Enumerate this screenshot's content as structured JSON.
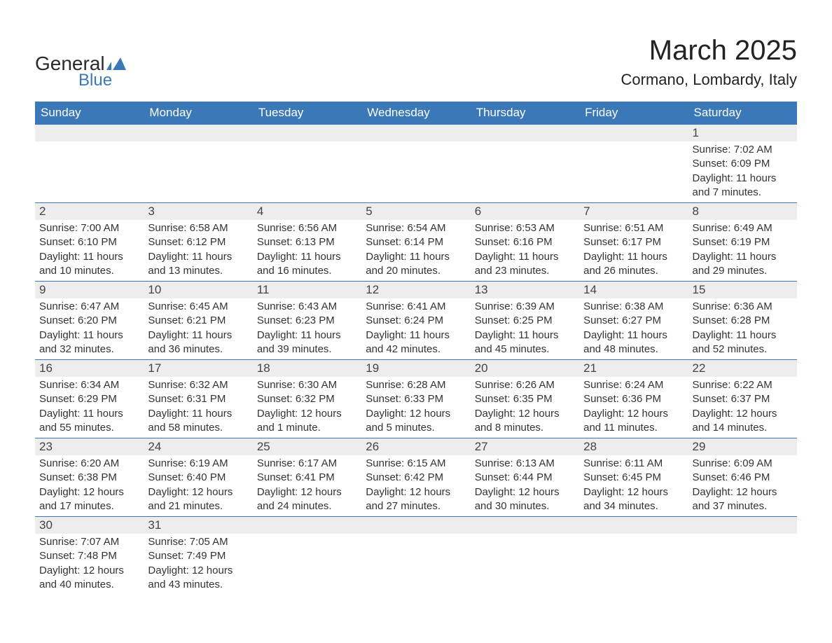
{
  "logo": {
    "general": "General",
    "blue": "Blue"
  },
  "title": "March 2025",
  "location": "Cormano, Lombardy, Italy",
  "colors": {
    "header_bg": "#3a78b8",
    "header_text": "#ffffff",
    "daynum_bg": "#ededed",
    "border": "#3a78b8",
    "text": "#333333",
    "logo_blue": "#3a78b8",
    "background": "#ffffff"
  },
  "typography": {
    "title_fontsize": 40,
    "location_fontsize": 22,
    "header_fontsize": 17,
    "daynum_fontsize": 17,
    "body_fontsize": 15
  },
  "layout": {
    "columns": 7,
    "rows": 6,
    "cell_width_pct": 14.28
  },
  "days_of_week": [
    "Sunday",
    "Monday",
    "Tuesday",
    "Wednesday",
    "Thursday",
    "Friday",
    "Saturday"
  ],
  "weeks": [
    [
      null,
      null,
      null,
      null,
      null,
      null,
      {
        "n": "1",
        "sunrise": "Sunrise: 7:02 AM",
        "sunset": "Sunset: 6:09 PM",
        "daylight1": "Daylight: 11 hours",
        "daylight2": "and 7 minutes."
      }
    ],
    [
      {
        "n": "2",
        "sunrise": "Sunrise: 7:00 AM",
        "sunset": "Sunset: 6:10 PM",
        "daylight1": "Daylight: 11 hours",
        "daylight2": "and 10 minutes."
      },
      {
        "n": "3",
        "sunrise": "Sunrise: 6:58 AM",
        "sunset": "Sunset: 6:12 PM",
        "daylight1": "Daylight: 11 hours",
        "daylight2": "and 13 minutes."
      },
      {
        "n": "4",
        "sunrise": "Sunrise: 6:56 AM",
        "sunset": "Sunset: 6:13 PM",
        "daylight1": "Daylight: 11 hours",
        "daylight2": "and 16 minutes."
      },
      {
        "n": "5",
        "sunrise": "Sunrise: 6:54 AM",
        "sunset": "Sunset: 6:14 PM",
        "daylight1": "Daylight: 11 hours",
        "daylight2": "and 20 minutes."
      },
      {
        "n": "6",
        "sunrise": "Sunrise: 6:53 AM",
        "sunset": "Sunset: 6:16 PM",
        "daylight1": "Daylight: 11 hours",
        "daylight2": "and 23 minutes."
      },
      {
        "n": "7",
        "sunrise": "Sunrise: 6:51 AM",
        "sunset": "Sunset: 6:17 PM",
        "daylight1": "Daylight: 11 hours",
        "daylight2": "and 26 minutes."
      },
      {
        "n": "8",
        "sunrise": "Sunrise: 6:49 AM",
        "sunset": "Sunset: 6:19 PM",
        "daylight1": "Daylight: 11 hours",
        "daylight2": "and 29 minutes."
      }
    ],
    [
      {
        "n": "9",
        "sunrise": "Sunrise: 6:47 AM",
        "sunset": "Sunset: 6:20 PM",
        "daylight1": "Daylight: 11 hours",
        "daylight2": "and 32 minutes."
      },
      {
        "n": "10",
        "sunrise": "Sunrise: 6:45 AM",
        "sunset": "Sunset: 6:21 PM",
        "daylight1": "Daylight: 11 hours",
        "daylight2": "and 36 minutes."
      },
      {
        "n": "11",
        "sunrise": "Sunrise: 6:43 AM",
        "sunset": "Sunset: 6:23 PM",
        "daylight1": "Daylight: 11 hours",
        "daylight2": "and 39 minutes."
      },
      {
        "n": "12",
        "sunrise": "Sunrise: 6:41 AM",
        "sunset": "Sunset: 6:24 PM",
        "daylight1": "Daylight: 11 hours",
        "daylight2": "and 42 minutes."
      },
      {
        "n": "13",
        "sunrise": "Sunrise: 6:39 AM",
        "sunset": "Sunset: 6:25 PM",
        "daylight1": "Daylight: 11 hours",
        "daylight2": "and 45 minutes."
      },
      {
        "n": "14",
        "sunrise": "Sunrise: 6:38 AM",
        "sunset": "Sunset: 6:27 PM",
        "daylight1": "Daylight: 11 hours",
        "daylight2": "and 48 minutes."
      },
      {
        "n": "15",
        "sunrise": "Sunrise: 6:36 AM",
        "sunset": "Sunset: 6:28 PM",
        "daylight1": "Daylight: 11 hours",
        "daylight2": "and 52 minutes."
      }
    ],
    [
      {
        "n": "16",
        "sunrise": "Sunrise: 6:34 AM",
        "sunset": "Sunset: 6:29 PM",
        "daylight1": "Daylight: 11 hours",
        "daylight2": "and 55 minutes."
      },
      {
        "n": "17",
        "sunrise": "Sunrise: 6:32 AM",
        "sunset": "Sunset: 6:31 PM",
        "daylight1": "Daylight: 11 hours",
        "daylight2": "and 58 minutes."
      },
      {
        "n": "18",
        "sunrise": "Sunrise: 6:30 AM",
        "sunset": "Sunset: 6:32 PM",
        "daylight1": "Daylight: 12 hours",
        "daylight2": "and 1 minute."
      },
      {
        "n": "19",
        "sunrise": "Sunrise: 6:28 AM",
        "sunset": "Sunset: 6:33 PM",
        "daylight1": "Daylight: 12 hours",
        "daylight2": "and 5 minutes."
      },
      {
        "n": "20",
        "sunrise": "Sunrise: 6:26 AM",
        "sunset": "Sunset: 6:35 PM",
        "daylight1": "Daylight: 12 hours",
        "daylight2": "and 8 minutes."
      },
      {
        "n": "21",
        "sunrise": "Sunrise: 6:24 AM",
        "sunset": "Sunset: 6:36 PM",
        "daylight1": "Daylight: 12 hours",
        "daylight2": "and 11 minutes."
      },
      {
        "n": "22",
        "sunrise": "Sunrise: 6:22 AM",
        "sunset": "Sunset: 6:37 PM",
        "daylight1": "Daylight: 12 hours",
        "daylight2": "and 14 minutes."
      }
    ],
    [
      {
        "n": "23",
        "sunrise": "Sunrise: 6:20 AM",
        "sunset": "Sunset: 6:38 PM",
        "daylight1": "Daylight: 12 hours",
        "daylight2": "and 17 minutes."
      },
      {
        "n": "24",
        "sunrise": "Sunrise: 6:19 AM",
        "sunset": "Sunset: 6:40 PM",
        "daylight1": "Daylight: 12 hours",
        "daylight2": "and 21 minutes."
      },
      {
        "n": "25",
        "sunrise": "Sunrise: 6:17 AM",
        "sunset": "Sunset: 6:41 PM",
        "daylight1": "Daylight: 12 hours",
        "daylight2": "and 24 minutes."
      },
      {
        "n": "26",
        "sunrise": "Sunrise: 6:15 AM",
        "sunset": "Sunset: 6:42 PM",
        "daylight1": "Daylight: 12 hours",
        "daylight2": "and 27 minutes."
      },
      {
        "n": "27",
        "sunrise": "Sunrise: 6:13 AM",
        "sunset": "Sunset: 6:44 PM",
        "daylight1": "Daylight: 12 hours",
        "daylight2": "and 30 minutes."
      },
      {
        "n": "28",
        "sunrise": "Sunrise: 6:11 AM",
        "sunset": "Sunset: 6:45 PM",
        "daylight1": "Daylight: 12 hours",
        "daylight2": "and 34 minutes."
      },
      {
        "n": "29",
        "sunrise": "Sunrise: 6:09 AM",
        "sunset": "Sunset: 6:46 PM",
        "daylight1": "Daylight: 12 hours",
        "daylight2": "and 37 minutes."
      }
    ],
    [
      {
        "n": "30",
        "sunrise": "Sunrise: 7:07 AM",
        "sunset": "Sunset: 7:48 PM",
        "daylight1": "Daylight: 12 hours",
        "daylight2": "and 40 minutes."
      },
      {
        "n": "31",
        "sunrise": "Sunrise: 7:05 AM",
        "sunset": "Sunset: 7:49 PM",
        "daylight1": "Daylight: 12 hours",
        "daylight2": "and 43 minutes."
      },
      null,
      null,
      null,
      null,
      null
    ]
  ]
}
